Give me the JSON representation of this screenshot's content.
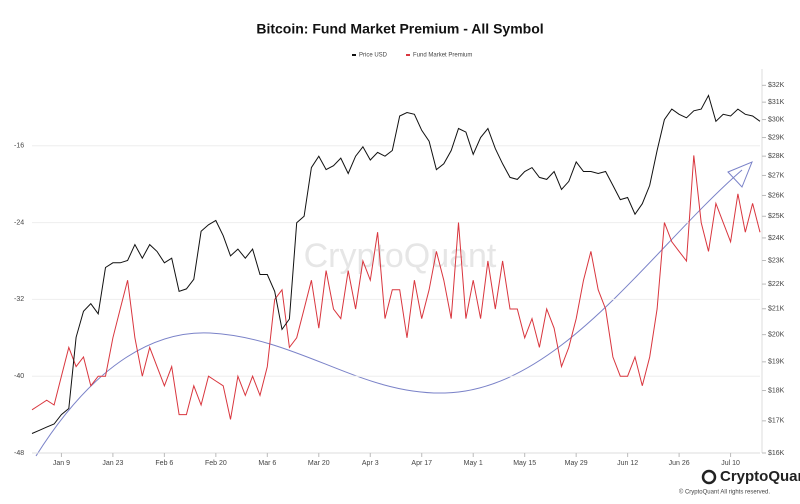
{
  "chart_data": {
    "type": "line",
    "title": "Bitcoin: Fund Market Premium - All Symbol",
    "watermark": "CryptoQuant",
    "brand": "CryptoQuant",
    "copyright": "© CryptoQuant All rights reserved.",
    "x": [
      "Jan 1",
      "Jan 3",
      "Jan 5",
      "Jan 7",
      "Jan 9",
      "Jan 11",
      "Jan 13",
      "Jan 15",
      "Jan 17",
      "Jan 19",
      "Jan 21",
      "Jan 23",
      "Jan 25",
      "Jan 27",
      "Jan 29",
      "Jan 31",
      "Feb 2",
      "Feb 4",
      "Feb 6",
      "Feb 8",
      "Feb 10",
      "Feb 12",
      "Feb 14",
      "Feb 16",
      "Feb 18",
      "Feb 20",
      "Feb 22",
      "Feb 24",
      "Feb 26",
      "Feb 28",
      "Mar 2",
      "Mar 4",
      "Mar 6",
      "Mar 8",
      "Mar 10",
      "Mar 12",
      "Mar 14",
      "Mar 16",
      "Mar 18",
      "Mar 20",
      "Mar 22",
      "Mar 24",
      "Mar 26",
      "Mar 28",
      "Mar 30",
      "Apr 1",
      "Apr 3",
      "Apr 5",
      "Apr 7",
      "Apr 9",
      "Apr 11",
      "Apr 13",
      "Apr 15",
      "Apr 17",
      "Apr 19",
      "Apr 21",
      "Apr 23",
      "Apr 25",
      "Apr 27",
      "Apr 29",
      "May 1",
      "May 3",
      "May 5",
      "May 7",
      "May 9",
      "May 11",
      "May 13",
      "May 15",
      "May 17",
      "May 19",
      "May 21",
      "May 23",
      "May 25",
      "May 27",
      "May 29",
      "May 31",
      "Jun 2",
      "Jun 4",
      "Jun 6",
      "Jun 8",
      "Jun 10",
      "Jun 12",
      "Jun 14",
      "Jun 16",
      "Jun 18",
      "Jun 20",
      "Jun 22",
      "Jun 24",
      "Jun 26",
      "Jun 28",
      "Jun 30",
      "Jul 2",
      "Jul 4",
      "Jul 6",
      "Jul 8",
      "Jul 10",
      "Jul 12",
      "Jul 14",
      "Jul 16",
      "Jul 18"
    ],
    "xticks": [
      "Jan 9",
      "Jan 23",
      "Feb 6",
      "Feb 20",
      "Mar 6",
      "Mar 20",
      "Apr 3",
      "Apr 17",
      "May 1",
      "May 15",
      "May 29",
      "Jun 12",
      "Jun 26",
      "Jul 10"
    ],
    "series": [
      {
        "name": "Price USD",
        "color": "#111111",
        "axis": "y2",
        "values": [
          16600,
          16700,
          16800,
          16900,
          17200,
          17400,
          19900,
          20900,
          21200,
          20800,
          22700,
          22900,
          22900,
          23000,
          23700,
          23100,
          23700,
          23400,
          22900,
          23100,
          21700,
          21800,
          22200,
          24300,
          24600,
          24800,
          24100,
          23200,
          23500,
          23100,
          23500,
          22400,
          22400,
          21700,
          20200,
          20600,
          24700,
          25000,
          27400,
          28000,
          27300,
          27500,
          27900,
          27100,
          28000,
          28500,
          27800,
          28200,
          28000,
          28300,
          30200,
          30400,
          30300,
          29400,
          28800,
          27300,
          27600,
          28300,
          29500,
          29300,
          28100,
          29000,
          29500,
          28400,
          27600,
          26900,
          26800,
          27200,
          27400,
          26900,
          26800,
          27200,
          26300,
          26700,
          27700,
          27200,
          27200,
          27100,
          27200,
          26500,
          25800,
          25900,
          25100,
          25600,
          26500,
          28300,
          30000,
          30600,
          30300,
          30100,
          30500,
          30600,
          31400,
          29900,
          30300,
          30200,
          30600,
          30300,
          30200,
          29900
        ]
      },
      {
        "name": "Fund Market Premium",
        "color": "#d9363e",
        "axis": "y",
        "values": [
          -43.5,
          -43,
          -42.5,
          -43,
          -40,
          -37,
          -39,
          -38,
          -41,
          -40,
          -40,
          -36,
          -33,
          -30,
          -36,
          -40,
          -37,
          -39,
          -41,
          -39,
          -44,
          -44,
          -41,
          -43,
          -40,
          -40.5,
          -41,
          -44.5,
          -40,
          -42,
          -40,
          -42,
          -39,
          -32,
          -31,
          -37,
          -36,
          -33,
          -30,
          -35,
          -29,
          -33,
          -34,
          -29,
          -33,
          -28,
          -30,
          -25,
          -34,
          -31,
          -31,
          -36,
          -30,
          -34,
          -31,
          -27,
          -30,
          -34,
          -24,
          -34,
          -30,
          -34,
          -28,
          -33,
          -28,
          -33,
          -33,
          -36,
          -34,
          -37,
          -33,
          -35,
          -39,
          -37,
          -34,
          -30,
          -27,
          -31,
          -33,
          -38,
          -40,
          -40,
          -38,
          -41,
          -38,
          -33,
          -24,
          -26,
          -27,
          -28,
          -17,
          -24,
          -27,
          -22,
          -24,
          -26,
          -21,
          -25,
          -22,
          -25
        ]
      }
    ],
    "ylim": [
      -48,
      -8
    ],
    "yticks": [
      -16,
      -24,
      -32,
      -40,
      -48
    ],
    "y2lim": [
      16000,
      33000
    ],
    "y2log": true,
    "y2ticks": [
      {
        "value": 16000,
        "label": "$16K"
      },
      {
        "value": 17000,
        "label": "$17K"
      },
      {
        "value": 18000,
        "label": "$18K"
      },
      {
        "value": 19000,
        "label": "$19K"
      },
      {
        "value": 20000,
        "label": "$20K"
      },
      {
        "value": 21000,
        "label": "$21K"
      },
      {
        "value": 22000,
        "label": "$22K"
      },
      {
        "value": 23000,
        "label": "$23K"
      },
      {
        "value": 24000,
        "label": "$24K"
      },
      {
        "value": 25000,
        "label": "$25K"
      },
      {
        "value": 26000,
        "label": "$26K"
      },
      {
        "value": 27000,
        "label": "$27K"
      },
      {
        "value": 28000,
        "label": "$28K"
      },
      {
        "value": 29000,
        "label": "$29K"
      },
      {
        "value": 30000,
        "label": "$30K"
      },
      {
        "value": 31000,
        "label": "$31K"
      },
      {
        "value": 32000,
        "label": "$32K"
      }
    ],
    "grid": true
  }
}
